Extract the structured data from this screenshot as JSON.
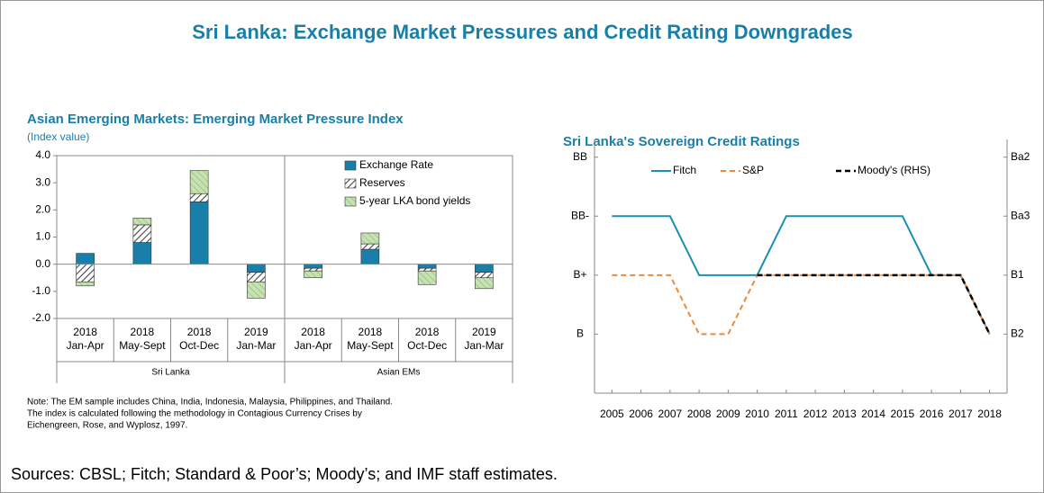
{
  "title": "Sri Lanka: Exchange Market Pressures and Credit Rating Downgrades",
  "sources": "Sources: CBSL; Fitch; Standard & Poor’s; Moody’s; and IMF staff estimates.",
  "chart_data": [
    {
      "type": "bar",
      "stacked": true,
      "title": "Asian Emerging Markets: Emerging Market Pressure Index",
      "ylabel": "(Index value)",
      "categories": [
        "2018 Jan-Apr",
        "2018 May-Sept",
        "2018 Oct-Dec",
        "2019 Jan-Mar",
        "2018 Jan-Apr",
        "2018 May-Sept",
        "2018 Oct-Dec",
        "2019 Jan-Mar"
      ],
      "groups": [
        {
          "name": "Sri Lanka",
          "size": 4
        },
        {
          "name": "Asian EMs",
          "size": 4
        }
      ],
      "series": [
        {
          "name": "Exchange Rate",
          "color": "#1a7fa8",
          "values": [
            0.4,
            0.8,
            2.3,
            -0.3,
            -0.15,
            0.55,
            -0.15,
            -0.3
          ]
        },
        {
          "name": "Reserves",
          "color": "#555555",
          "pattern": "hatch-gray",
          "values": [
            -0.65,
            0.65,
            0.3,
            -0.35,
            -0.1,
            0.2,
            -0.1,
            -0.2
          ]
        },
        {
          "name": "5-year LKA bond yields",
          "color": "#c5e3b0",
          "pattern": "hatch-green",
          "values": [
            -0.15,
            0.25,
            0.85,
            -0.6,
            -0.25,
            0.4,
            -0.5,
            -0.4
          ]
        }
      ],
      "ylim": [
        -2,
        4
      ],
      "yticks": [
        {
          "value": 4,
          "label": "4.0"
        },
        {
          "value": 3,
          "label": "3.0"
        },
        {
          "value": 2,
          "label": "2.0"
        },
        {
          "value": 1,
          "label": "1.0"
        },
        {
          "value": 0,
          "label": "0.0"
        },
        {
          "value": -1,
          "label": "-1.0"
        },
        {
          "value": -2,
          "label": "-2.0"
        }
      ],
      "note": [
        "Note: The EM sample includes China, India, Indonesia, Malaysia, Philippines, and Thailand.",
        "The index is calculated following the methodology  in Contagious Currency Crises by",
        "Eichengreen, Rose, and Wyplosz, 1997."
      ]
    },
    {
      "type": "line",
      "title": "Sri Lanka's Sovereign Credit Ratings",
      "x": [
        2005,
        2006,
        2007,
        2008,
        2009,
        2010,
        2011,
        2012,
        2013,
        2014,
        2015,
        2016,
        2017,
        2018
      ],
      "xlim": [
        2004.4,
        2018.6
      ],
      "xticks": [
        2005,
        2006,
        2007,
        2008,
        2009,
        2010,
        2011,
        2012,
        2013,
        2014,
        2015,
        2016,
        2017,
        2018
      ],
      "ylim": [
        0,
        4.3
      ],
      "yticks": [
        {
          "value": 4,
          "label": "BB"
        },
        {
          "value": 3,
          "label": "BB-"
        },
        {
          "value": 2,
          "label": "B+"
        },
        {
          "value": 1,
          "label": "B"
        }
      ],
      "y2lim": [
        0,
        4.3
      ],
      "y2ticks": [
        {
          "value": 4,
          "label": "Ba2"
        },
        {
          "value": 3,
          "label": "Ba3"
        },
        {
          "value": 2,
          "label": "B1"
        },
        {
          "value": 1,
          "label": "B2"
        }
      ],
      "series": [
        {
          "name": "Fitch",
          "color": "#1a8fb5",
          "dash": "solid",
          "values": [
            3,
            3,
            3,
            2,
            2,
            2,
            3,
            3,
            3,
            3,
            3,
            2,
            2,
            1
          ]
        },
        {
          "name": "S&P",
          "color": "#f0883a",
          "dash": "dashed",
          "values": [
            2,
            2,
            2,
            1,
            1,
            2,
            2,
            2,
            2,
            2,
            2,
            2,
            2,
            1
          ]
        },
        {
          "name": "Moody's (RHS)",
          "color": "#000000",
          "dash": "dashed",
          "axis": "y2",
          "values": [
            null,
            null,
            null,
            null,
            null,
            2,
            2,
            2,
            2,
            2,
            2,
            2,
            2,
            1
          ]
        }
      ]
    }
  ]
}
